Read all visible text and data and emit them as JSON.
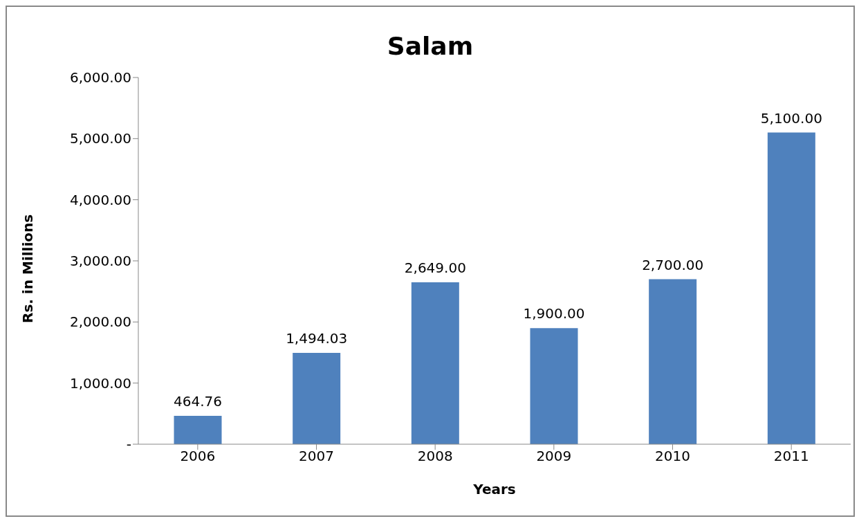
{
  "chart_data": {
    "type": "bar",
    "title": "Salam",
    "xlabel": "Years",
    "ylabel": "Rs. in Millions",
    "categories": [
      "2006",
      "2007",
      "2008",
      "2009",
      "2010",
      "2011"
    ],
    "values": [
      464.76,
      1494.03,
      2649,
      1900,
      2700,
      5100
    ],
    "value_labels": [
      "464.76",
      "1,494.03",
      "2,649.00",
      "1,900.00",
      "2,700.00",
      "5,100.00"
    ],
    "color": "#4f81bd",
    "ylim": [
      0,
      6000
    ],
    "yticks": [
      {
        "value": 0,
        "label": "-"
      },
      {
        "value": 1000,
        "label": "1,000.00"
      },
      {
        "value": 2000,
        "label": "2,000.00"
      },
      {
        "value": 3000,
        "label": "3,000.00"
      },
      {
        "value": 4000,
        "label": "4,000.00"
      },
      {
        "value": 5000,
        "label": "5,000.00"
      },
      {
        "value": 6000,
        "label": "6,000.00"
      }
    ],
    "grid": false,
    "legend": false
  }
}
